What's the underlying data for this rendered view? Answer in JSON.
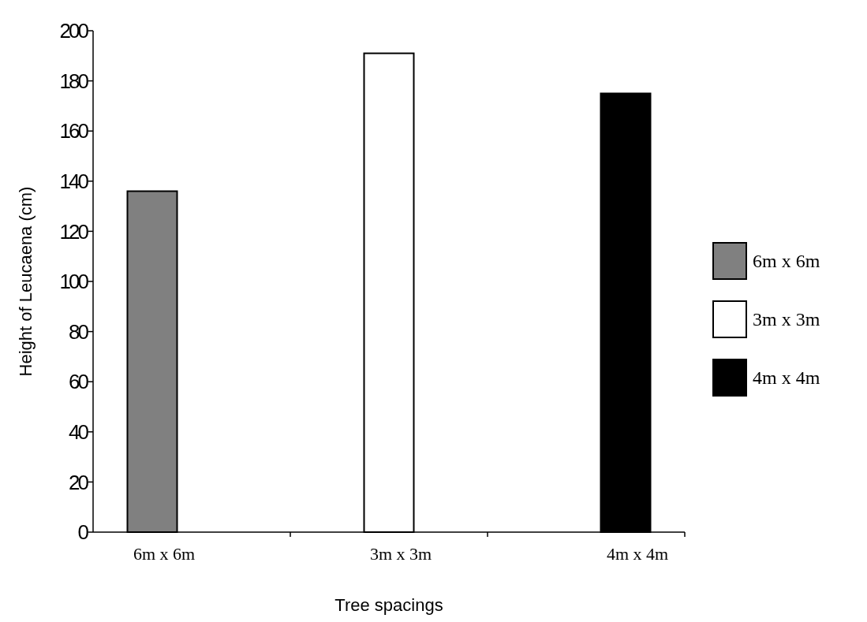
{
  "chart_data": {
    "type": "bar",
    "xlabel": "Tree spacings",
    "ylabel": "Height of Leucaena (cm)",
    "categories": [
      "6m x 6m",
      "3m x 3m",
      "4m x 4m"
    ],
    "series": [
      {
        "name": "6m x 6m",
        "color": "#808080",
        "values": [
          136,
          null,
          null
        ]
      },
      {
        "name": "3m x 3m",
        "color": "#ffffff",
        "values": [
          null,
          191,
          null
        ]
      },
      {
        "name": "4m x 4m",
        "color": "#000000",
        "values": [
          null,
          null,
          175
        ]
      }
    ],
    "stacked": true,
    "ylim": [
      0,
      200
    ],
    "yticks": [
      0,
      20,
      40,
      60,
      80,
      100,
      120,
      140,
      160,
      180,
      200
    ],
    "legend": "right",
    "grid": false
  }
}
